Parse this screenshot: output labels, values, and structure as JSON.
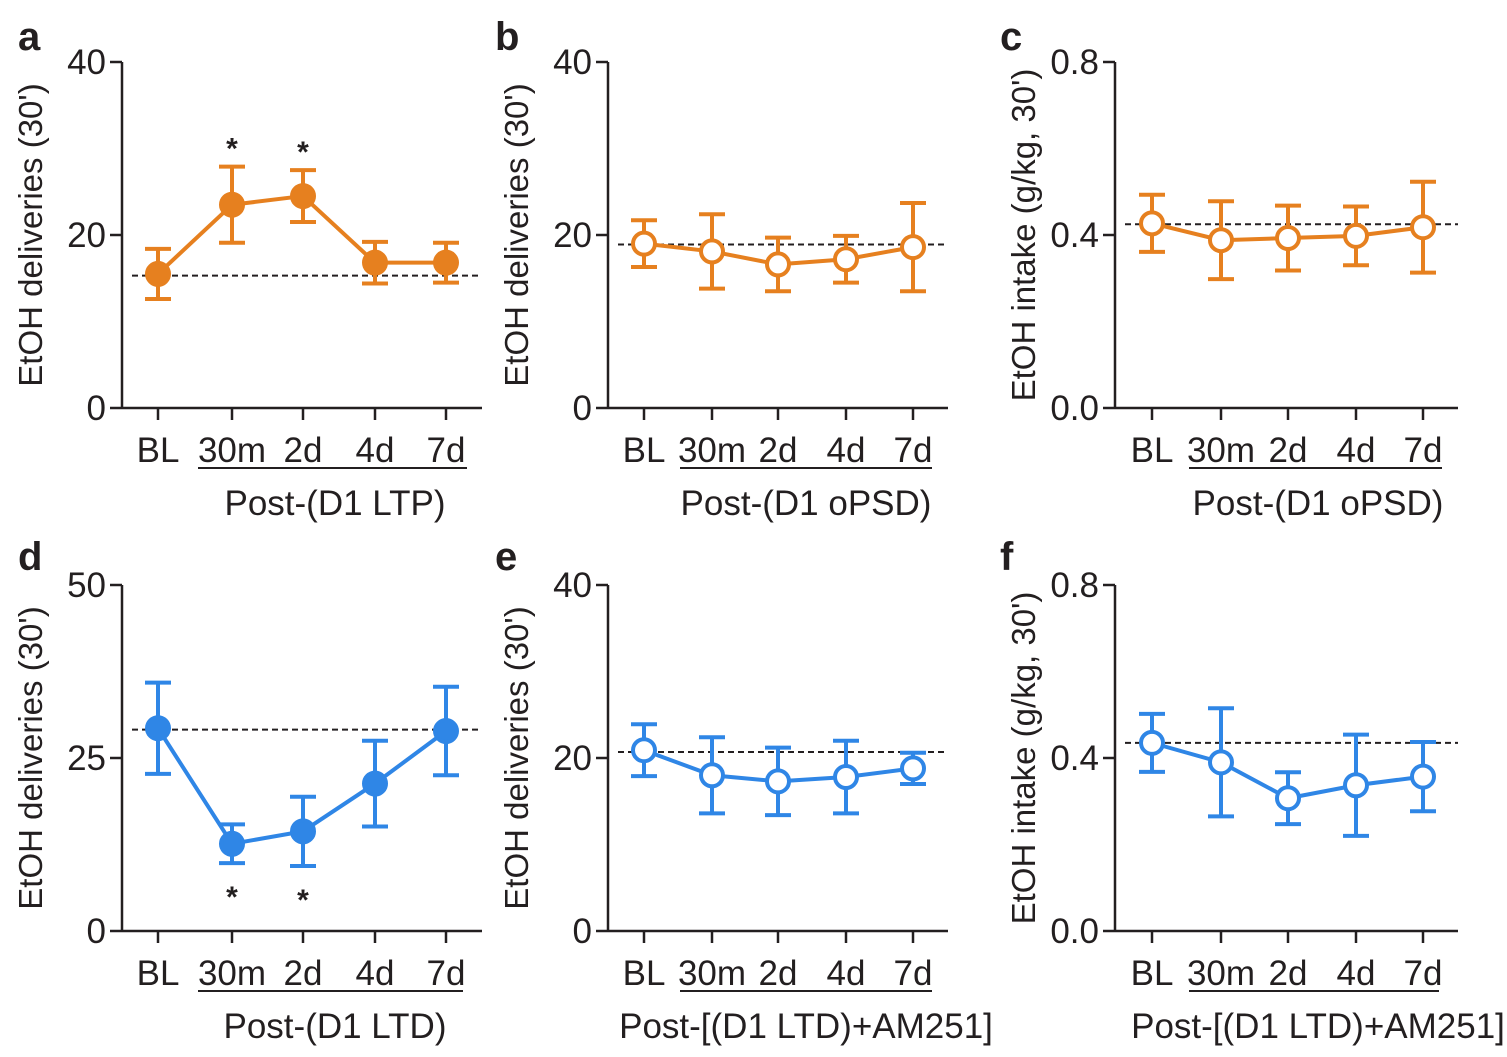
{
  "colors": {
    "orange": "#e6801f",
    "blue": "#2f86e6",
    "axis": "#231f20"
  },
  "chart_data": [
    {
      "panel": "a",
      "type": "line",
      "filled": true,
      "color": "orange",
      "ylabel": "EtOH deliveries (30')",
      "ylim": [
        0,
        40
      ],
      "yticks": [
        0,
        20,
        40
      ],
      "ytick_labels": [
        "0",
        "20",
        "40"
      ],
      "categories": [
        "BL",
        "30m",
        "2d",
        "4d",
        "7d"
      ],
      "values": [
        15.5,
        23.5,
        24.5,
        16.8,
        16.8
      ],
      "errors": [
        2.9,
        4.4,
        3.0,
        2.4,
        2.3
      ],
      "baseline": 15.3,
      "significant": [
        "",
        "*",
        "*",
        "",
        ""
      ],
      "significance_position": "above",
      "xlabel": "Post-(D1 LTP)"
    },
    {
      "panel": "b",
      "type": "line",
      "filled": false,
      "color": "orange",
      "ylabel": "EtOH deliveries (30')",
      "ylim": [
        0,
        40
      ],
      "yticks": [
        0,
        20,
        40
      ],
      "ytick_labels": [
        "0",
        "20",
        "40"
      ],
      "categories": [
        "BL",
        "30m",
        "2d",
        "4d",
        "7d"
      ],
      "values": [
        19.0,
        18.1,
        16.6,
        17.2,
        18.6
      ],
      "errors": [
        2.7,
        4.3,
        3.1,
        2.7,
        5.1
      ],
      "baseline": 18.9,
      "significant": [
        "",
        "",
        "",
        "",
        ""
      ],
      "significance_position": "above",
      "xlabel": "Post-(D1 oPSD)"
    },
    {
      "panel": "c",
      "type": "line",
      "filled": false,
      "color": "orange",
      "ylabel": "EtOH intake (g/kg, 30')",
      "ylim": [
        0,
        0.8
      ],
      "yticks": [
        0,
        0.4,
        0.8
      ],
      "ytick_labels": [
        "0.0",
        "0.4",
        "0.8"
      ],
      "categories": [
        "BL",
        "30m",
        "2d",
        "4d",
        "7d"
      ],
      "values": [
        0.427,
        0.388,
        0.393,
        0.398,
        0.418
      ],
      "errors": [
        0.066,
        0.09,
        0.075,
        0.068,
        0.105
      ],
      "baseline": 0.425,
      "significant": [
        "",
        "",
        "",
        "",
        ""
      ],
      "significance_position": "above",
      "xlabel": "Post-(D1 oPSD)"
    },
    {
      "panel": "d",
      "type": "line",
      "filled": true,
      "color": "blue",
      "ylabel": "EtOH deliveries (30')",
      "ylim": [
        0,
        50
      ],
      "yticks": [
        0,
        25,
        50
      ],
      "ytick_labels": [
        "0",
        "25",
        "50"
      ],
      "categories": [
        "BL",
        "30m",
        "2d",
        "4d",
        "7d"
      ],
      "values": [
        29.3,
        12.6,
        14.4,
        21.3,
        28.9
      ],
      "errors": [
        6.6,
        2.8,
        5.0,
        6.2,
        6.4
      ],
      "baseline": 29.1,
      "significant": [
        "",
        "*",
        "*",
        "",
        ""
      ],
      "significance_position": "below",
      "xlabel": "Post-(D1 LTD)"
    },
    {
      "panel": "e",
      "type": "line",
      "filled": false,
      "color": "blue",
      "ylabel": "EtOH deliveries (30')",
      "ylim": [
        0,
        40
      ],
      "yticks": [
        0,
        20,
        40
      ],
      "ytick_labels": [
        "0",
        "20",
        "40"
      ],
      "categories": [
        "BL",
        "30m",
        "2d",
        "4d",
        "7d"
      ],
      "values": [
        20.9,
        18.0,
        17.3,
        17.8,
        18.8
      ],
      "errors": [
        3.0,
        4.4,
        3.9,
        4.2,
        1.8
      ],
      "baseline": 20.7,
      "significant": [
        "",
        "",
        "",
        "",
        ""
      ],
      "significance_position": "above",
      "xlabel": "Post-[(D1 LTD)+AM251]"
    },
    {
      "panel": "f",
      "type": "line",
      "filled": false,
      "color": "blue",
      "ylabel": "EtOH intake (g/kg, 30')",
      "ylim": [
        0,
        0.8
      ],
      "yticks": [
        0,
        0.4,
        0.8
      ],
      "ytick_labels": [
        "0.0",
        "0.4",
        "0.8"
      ],
      "categories": [
        "BL",
        "30m",
        "2d",
        "4d",
        "7d"
      ],
      "values": [
        0.435,
        0.39,
        0.307,
        0.337,
        0.357
      ],
      "errors": [
        0.067,
        0.125,
        0.06,
        0.117,
        0.08
      ],
      "baseline": 0.435,
      "significant": [
        "",
        "",
        "",
        "",
        ""
      ],
      "significance_position": "above",
      "xlabel": "Post-[(D1 LTD)+AM251]"
    }
  ]
}
